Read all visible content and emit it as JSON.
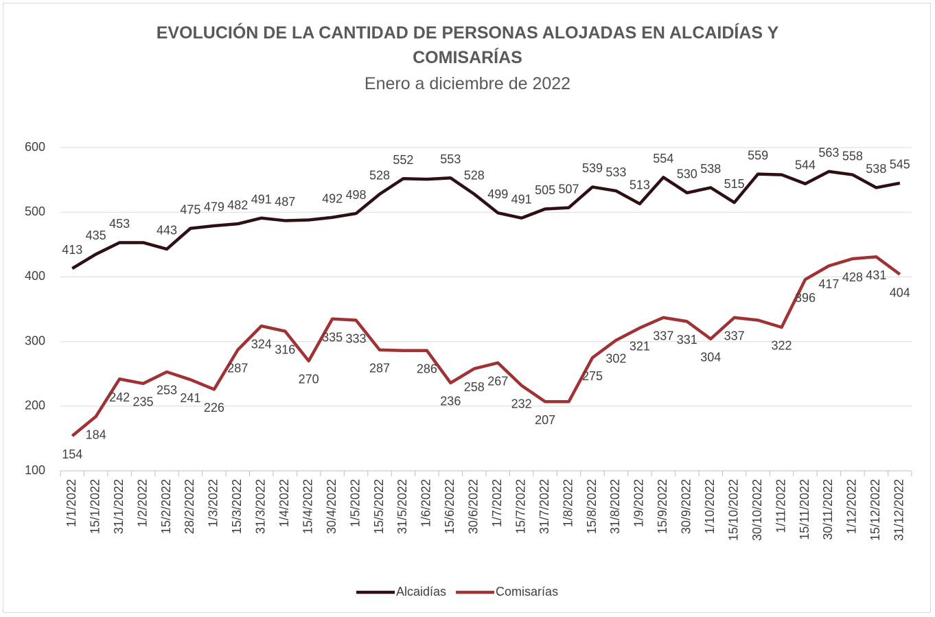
{
  "chart_data": {
    "type": "line",
    "title": "EVOLUCIÓN DE LA CANTIDAD DE PERSONAS ALOJADAS EN ALCAIDÍAS Y COMISARÍAS",
    "subtitle": "Enero a diciembre de 2022",
    "categories": [
      "1/1/2022",
      "15/1/2022",
      "31/1/2022",
      "1/2/2022",
      "15/2/2022",
      "28/2/2022",
      "1/3/2022",
      "15/3/2022",
      "31/3/2022",
      "1/4/2022",
      "15/4/2022",
      "30/4/2022",
      "1/5/2022",
      "15/5/2022",
      "31/5/2022",
      "1/6/2022",
      "15/6/2022",
      "30/6/2022",
      "1/7/2022",
      "15/7/2022",
      "31/7/2022",
      "1/8/2022",
      "15/8/2022",
      "31/8/2022",
      "1/9/2022",
      "15/9/2022",
      "30/9/2022",
      "1/10/2022",
      "15/10/2022",
      "30/10/2022",
      "1/11/2022",
      "15/11/2022",
      "30/11/2022",
      "1/12/2022",
      "15/12/2022",
      "31/12/2022"
    ],
    "series": [
      {
        "name": "Alcaidías",
        "color": "#2e0f14",
        "values": [
          413,
          435,
          453,
          453,
          443,
          475,
          479,
          482,
          491,
          487,
          488,
          492,
          498,
          528,
          552,
          551,
          553,
          528,
          499,
          491,
          505,
          507,
          539,
          533,
          513,
          554,
          530,
          538,
          515,
          559,
          558,
          544,
          563,
          558,
          538,
          545
        ],
        "value_labels": [
          "413",
          "435",
          "453",
          null,
          "443",
          "475",
          "479",
          "482",
          "491",
          "487",
          null,
          "492",
          "498",
          "528",
          "552",
          null,
          "553",
          "528",
          "499",
          "491",
          "505",
          "507",
          "539",
          "533",
          "513",
          "554",
          "530",
          "538",
          "515",
          "559",
          null,
          "544",
          "563",
          "558",
          "538",
          "545"
        ]
      },
      {
        "name": "Comisarías",
        "color": "#9e3234",
        "values": [
          154,
          184,
          242,
          235,
          253,
          241,
          226,
          287,
          324,
          316,
          270,
          335,
          333,
          287,
          286,
          286,
          236,
          258,
          267,
          232,
          207,
          207,
          275,
          302,
          321,
          337,
          331,
          304,
          337,
          333,
          322,
          396,
          417,
          428,
          431,
          404
        ],
        "value_labels": [
          "154",
          "184",
          "242",
          "235",
          "253",
          "241",
          "226",
          "287",
          "324",
          "316",
          "270",
          "335",
          "333",
          "287",
          null,
          "286",
          "236",
          "258",
          "267",
          "232",
          "207",
          null,
          "275",
          "302",
          "321",
          "337",
          "331",
          "304",
          "337",
          null,
          "322",
          "396",
          "417",
          "428",
          "431",
          "404"
        ]
      }
    ],
    "ylim": [
      100,
      600
    ],
    "yticks": [
      100,
      200,
      300,
      400,
      500,
      600
    ],
    "grid": true,
    "legend": "bottom"
  }
}
